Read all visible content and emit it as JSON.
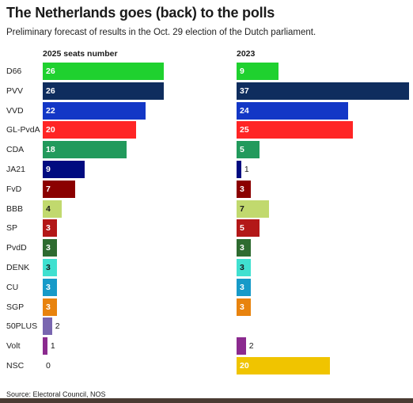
{
  "header": {
    "title": "The Netherlands goes (back) to the polls",
    "subtitle": "Preliminary forecast of results in the Oct. 29 election of the Dutch parliament."
  },
  "chart_data": {
    "type": "bar",
    "orientation": "horizontal",
    "categories": [
      "D66",
      "PVV",
      "VVD",
      "GL-PvdA",
      "CDA",
      "JA21",
      "FvD",
      "BBB",
      "SP",
      "PvdD",
      "DENK",
      "CU",
      "SGP",
      "50PLUS",
      "Volt",
      "NSC"
    ],
    "series": [
      {
        "name": "2025 seats number",
        "values": [
          26,
          26,
          22,
          20,
          18,
          9,
          7,
          4,
          3,
          3,
          3,
          3,
          3,
          2,
          1,
          0
        ]
      },
      {
        "name": "2023",
        "values": [
          9,
          37,
          24,
          25,
          5,
          1,
          3,
          7,
          5,
          3,
          3,
          3,
          3,
          null,
          2,
          20
        ]
      }
    ],
    "colors": [
      "#1fd12f",
      "#0f2d5e",
      "#1337c6",
      "#ff2525",
      "#229a5c",
      "#000b80",
      "#8b0000",
      "#c1d96e",
      "#b31818",
      "#2e6b30",
      "#40e0d0",
      "#179ac8",
      "#e8830e",
      "#7966b0",
      "#8b2a8f",
      "#f0c400"
    ],
    "light_label_colors": [
      "#c1d96e",
      "#40e0d0"
    ],
    "xlim": [
      0,
      37
    ]
  },
  "footer": {
    "source": "Source: Electoral Council, NOS"
  }
}
